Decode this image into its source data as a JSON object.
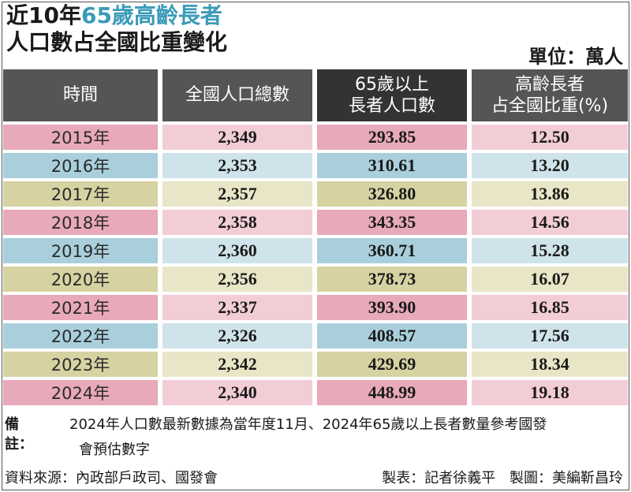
{
  "title": {
    "line1_prefix": "近10年",
    "line1_accent": "65歲高齡長者",
    "line2": "人口數占全國比重變化"
  },
  "unit": "單位：萬人",
  "colors": {
    "pink": "#f2cdd6",
    "pink_dark": "#e8a9ba",
    "blue": "#cfe3ea",
    "blue_dark": "#a9cfdc",
    "olive": "#e8e6c6",
    "olive_dark": "#d6d2a2",
    "header": "#555555",
    "header_dark": "#333333",
    "accent": "#3a9bb8"
  },
  "headers": [
    {
      "line1": "時間",
      "line2": ""
    },
    {
      "line1": "全國人口總數",
      "line2": ""
    },
    {
      "line1": "65歲以上",
      "line2": "長者人口數"
    },
    {
      "line1": "高齡長者",
      "line2": "占全國比重(%)"
    }
  ],
  "rows": [
    {
      "year": "2015年",
      "total": "2,349",
      "elderly": "293.85",
      "ratio": "12.50",
      "tone": "pink"
    },
    {
      "year": "2016年",
      "total": "2,353",
      "elderly": "310.61",
      "ratio": "13.20",
      "tone": "blue"
    },
    {
      "year": "2017年",
      "total": "2,357",
      "elderly": "326.80",
      "ratio": "13.86",
      "tone": "olive"
    },
    {
      "year": "2018年",
      "total": "2,358",
      "elderly": "343.35",
      "ratio": "14.56",
      "tone": "pink"
    },
    {
      "year": "2019年",
      "total": "2,360",
      "elderly": "360.71",
      "ratio": "15.28",
      "tone": "blue"
    },
    {
      "year": "2020年",
      "total": "2,356",
      "elderly": "378.73",
      "ratio": "16.07",
      "tone": "olive"
    },
    {
      "year": "2021年",
      "total": "2,337",
      "elderly": "393.90",
      "ratio": "16.85",
      "tone": "pink"
    },
    {
      "year": "2022年",
      "total": "2,326",
      "elderly": "408.57",
      "ratio": "17.56",
      "tone": "blue"
    },
    {
      "year": "2023年",
      "total": "2,342",
      "elderly": "429.69",
      "ratio": "18.34",
      "tone": "olive"
    },
    {
      "year": "2024年",
      "total": "2,340",
      "elderly": "448.99",
      "ratio": "19.18",
      "tone": "pink"
    }
  ],
  "note": {
    "label": "備註：",
    "line1": "2024年人口數最新數據為當年度11月、2024年65歲以上長者數量參考國發",
    "line2": "會預估數字"
  },
  "source": "資料來源：內政部戶政司、國發會",
  "credit_table": "製表：記者徐義平",
  "credit_graphic": "製圖：美編靳昌玲"
}
